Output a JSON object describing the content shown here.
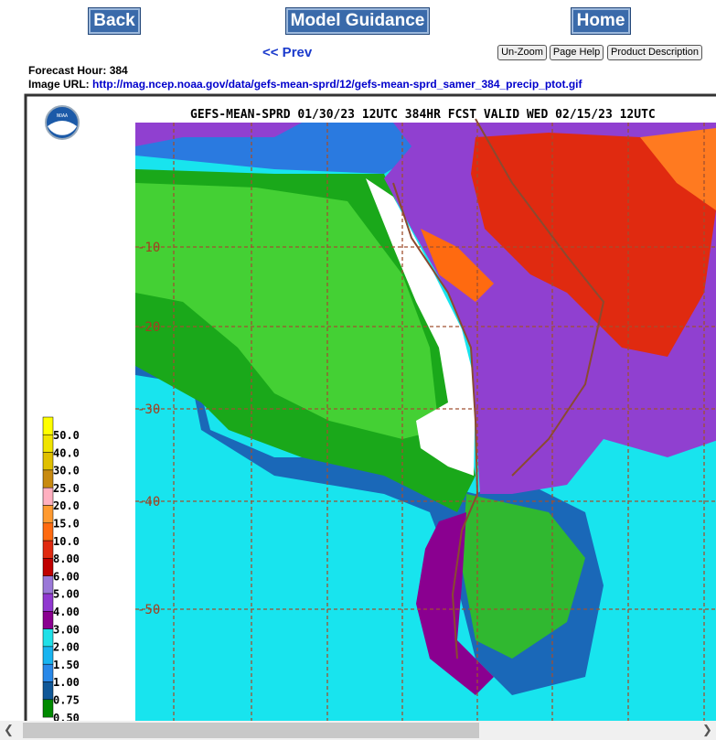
{
  "nav": {
    "back": "Back",
    "model_guidance": "Model Guidance",
    "home": "Home",
    "prev": "<< Prev",
    "unzoom": "Un-Zoom",
    "page_help": "Page Help",
    "product_description": "Product Description"
  },
  "info": {
    "forecast_hour_label": "Forecast Hour:",
    "forecast_hour": 384,
    "image_url_label": "Image URL:",
    "image_url": "http://mag.ncep.noaa.gov/data/gefs-mean-sprd/12/gefs-mean-sprd_samer_384_precip_ptot.gif"
  },
  "map": {
    "logo": "NOAA",
    "title": "GEFS-MEAN-SPRD 01/30/23 12UTC 384HR FCST VALID WED 02/15/23 12UTC",
    "lat_labels": [
      "-10",
      "-20",
      "-30",
      "-40",
      "-50"
    ],
    "legend": [
      {
        "label": "50.0",
        "color": "#ffff00"
      },
      {
        "label": "40.0",
        "color": "#f0e400"
      },
      {
        "label": "30.0",
        "color": "#e0c000"
      },
      {
        "label": "25.0",
        "color": "#c88a10"
      },
      {
        "label": "20.0",
        "color": "#ffb0c0"
      },
      {
        "label": "15.0",
        "color": "#ff9a30"
      },
      {
        "label": "10.0",
        "color": "#ff6a10"
      },
      {
        "label": "8.00",
        "color": "#e02a10"
      },
      {
        "label": "6.00",
        "color": "#c00000"
      },
      {
        "label": "5.00",
        "color": "#9a78d8"
      },
      {
        "label": "4.00",
        "color": "#9038d0"
      },
      {
        "label": "3.00",
        "color": "#8a0090"
      },
      {
        "label": "2.00",
        "color": "#20e0e8"
      },
      {
        "label": "1.50",
        "color": "#18b4f0"
      },
      {
        "label": "1.00",
        "color": "#2888e8"
      },
      {
        "label": "0.75",
        "color": "#105898"
      },
      {
        "label": "0.50",
        "color": "#008a00"
      }
    ]
  }
}
